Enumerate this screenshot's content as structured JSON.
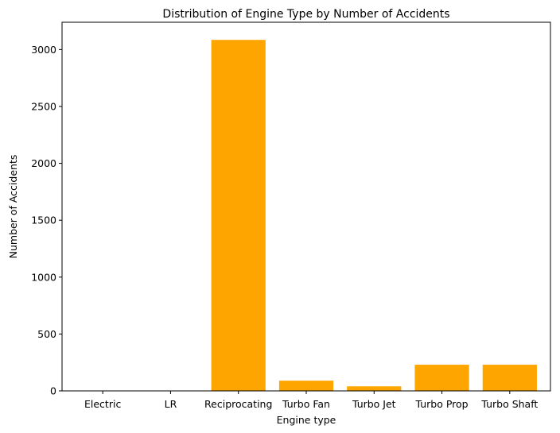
{
  "chart_data": {
    "type": "bar",
    "title": "Distribution of Engine Type by Number of Accidents",
    "xlabel": "Engine type",
    "ylabel": "Number of Accidents",
    "categories": [
      "Electric",
      "LR",
      "Reciprocating",
      "Turbo Fan",
      "Turbo Jet",
      "Turbo Prop",
      "Turbo Shaft"
    ],
    "values": [
      1,
      1,
      3085,
      90,
      40,
      230,
      230
    ],
    "ylim": [
      0,
      3240
    ],
    "yticks": [
      0,
      500,
      1000,
      1500,
      2000,
      2500,
      3000
    ],
    "bar_color": "#ffa500",
    "grid": false,
    "legend": false
  }
}
